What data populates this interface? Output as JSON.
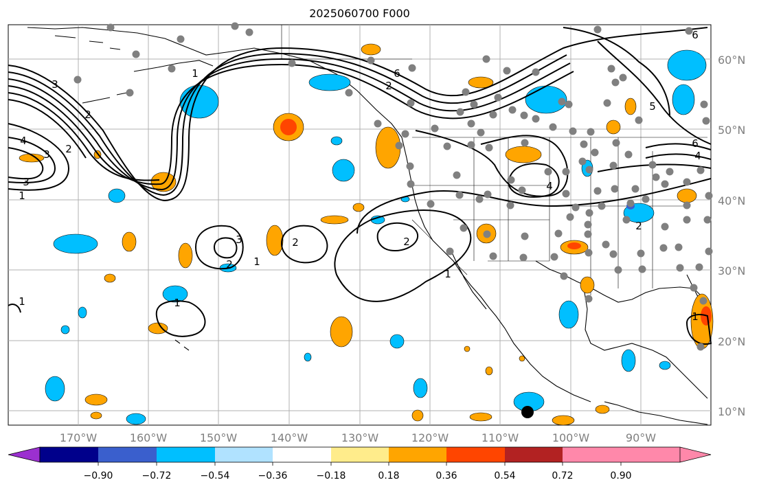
{
  "title": "2025060700 F000",
  "lat_labels": [
    "60°N",
    "50°N",
    "40°N",
    "30°N",
    "20°N",
    "10°N"
  ],
  "lon_labels": [
    "170°W",
    "160°W",
    "150°W",
    "140°W",
    "130°W",
    "120°W",
    "110°W",
    "100°W",
    "90°W"
  ],
  "colorbar": {
    "colors": [
      "#9b30d0",
      "#00008b",
      "#3a5fcd",
      "#00bfff",
      "#b0e2ff",
      "#ffffff",
      "#ffec8b",
      "#ffa500",
      "#ff4500",
      "#b22222",
      "#ff88aa"
    ],
    "tick_labels": [
      "−0.90",
      "−0.72",
      "−0.54",
      "−0.36",
      "−0.18",
      "0.18",
      "0.36",
      "0.54",
      "0.72",
      "0.90"
    ]
  },
  "contour_labels": [
    "3",
    "2",
    "4",
    "3",
    "3",
    "1",
    "6",
    "2",
    "1",
    "6",
    "5",
    "6",
    "4",
    "4",
    "2",
    "2",
    "2",
    "3",
    "2",
    "1",
    "1",
    "1",
    "2",
    "1",
    "1"
  ],
  "colors": {
    "ocean": "#ffffff",
    "grid": "#b0b0b0",
    "coast": "#000000",
    "dot": "#808080"
  }
}
